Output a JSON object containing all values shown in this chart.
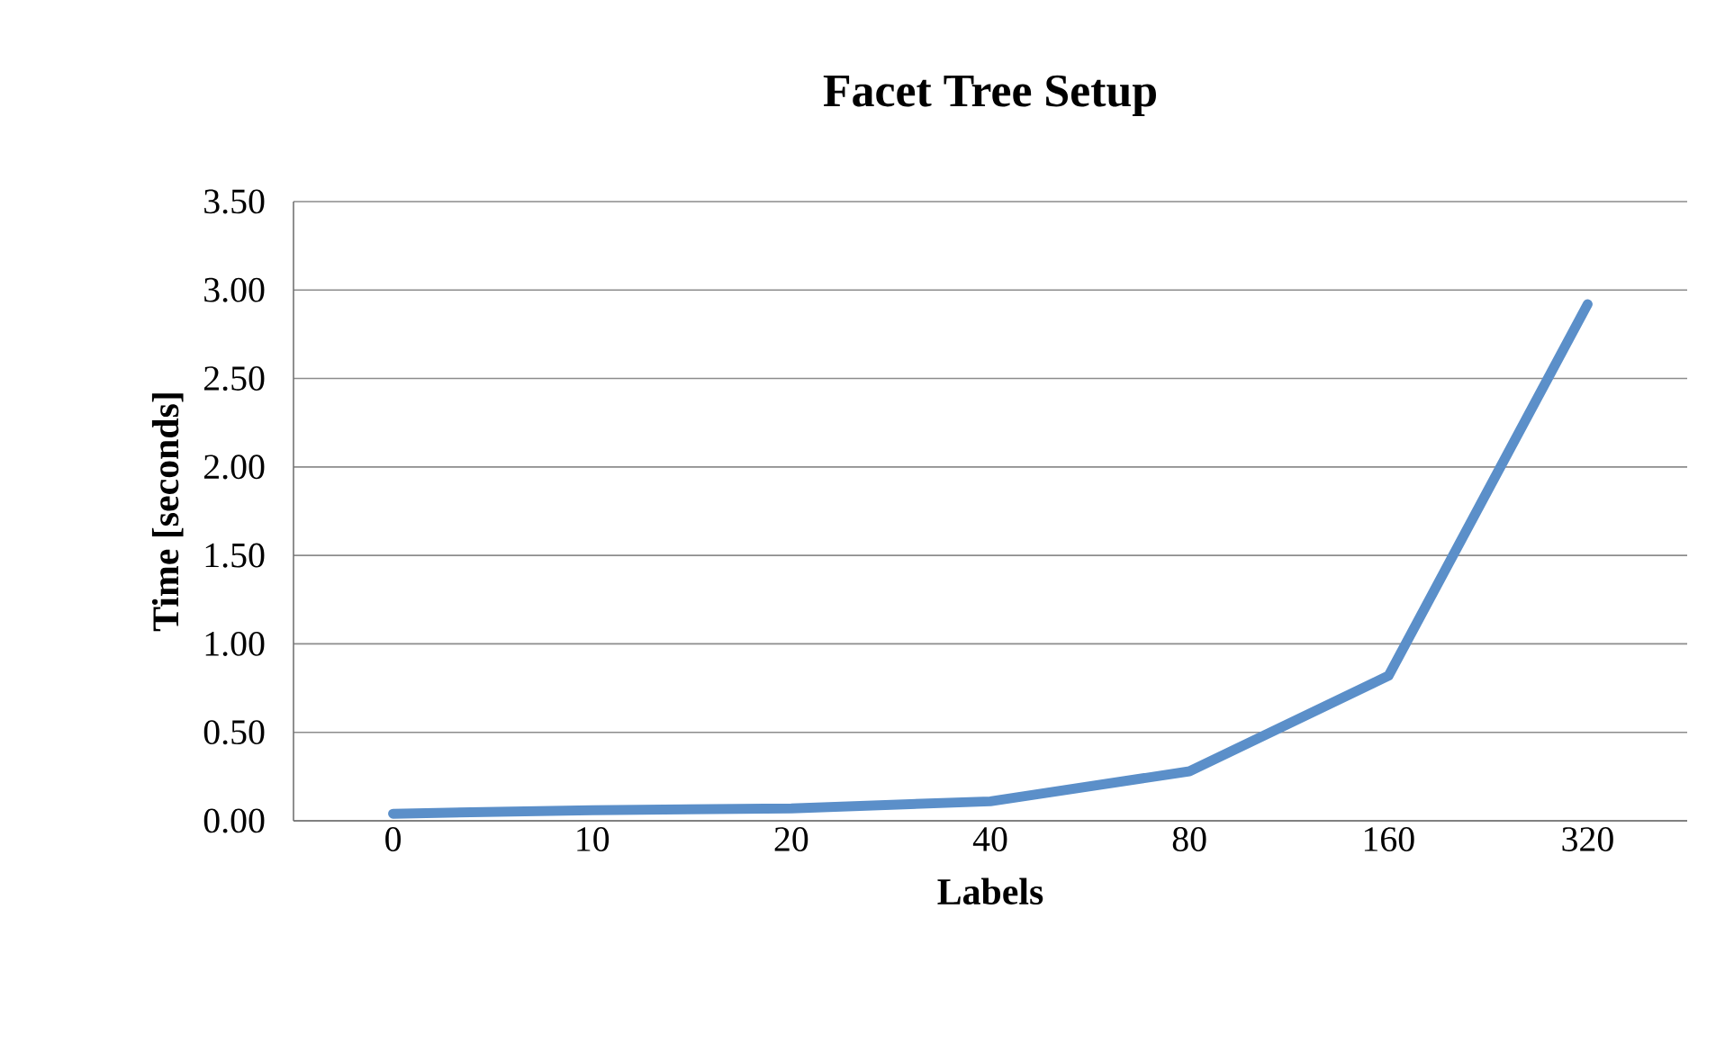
{
  "chart_data": {
    "type": "line",
    "title": "Facet Tree Setup",
    "xlabel": "Labels",
    "ylabel": "Time [seconds]",
    "categories": [
      "0",
      "10",
      "20",
      "40",
      "80",
      "160",
      "320"
    ],
    "series": [
      {
        "color": "#5b8fc9",
        "values": [
          0.04,
          0.06,
          0.07,
          0.11,
          0.28,
          0.82,
          2.92
        ]
      }
    ],
    "ylim": [
      0,
      3.5
    ],
    "yticks": [
      {
        "value": 0,
        "label": "0.00"
      },
      {
        "value": 0.5,
        "label": "0.50"
      },
      {
        "value": 1,
        "label": "1.00"
      },
      {
        "value": 1.5,
        "label": "1.50"
      },
      {
        "value": 2,
        "label": "2.00"
      },
      {
        "value": 2.5,
        "label": "2.50"
      },
      {
        "value": 3,
        "label": "3.00"
      },
      {
        "value": 3.5,
        "label": "3.50"
      }
    ],
    "grid": "y",
    "marker": "none",
    "line_style": "solid"
  }
}
